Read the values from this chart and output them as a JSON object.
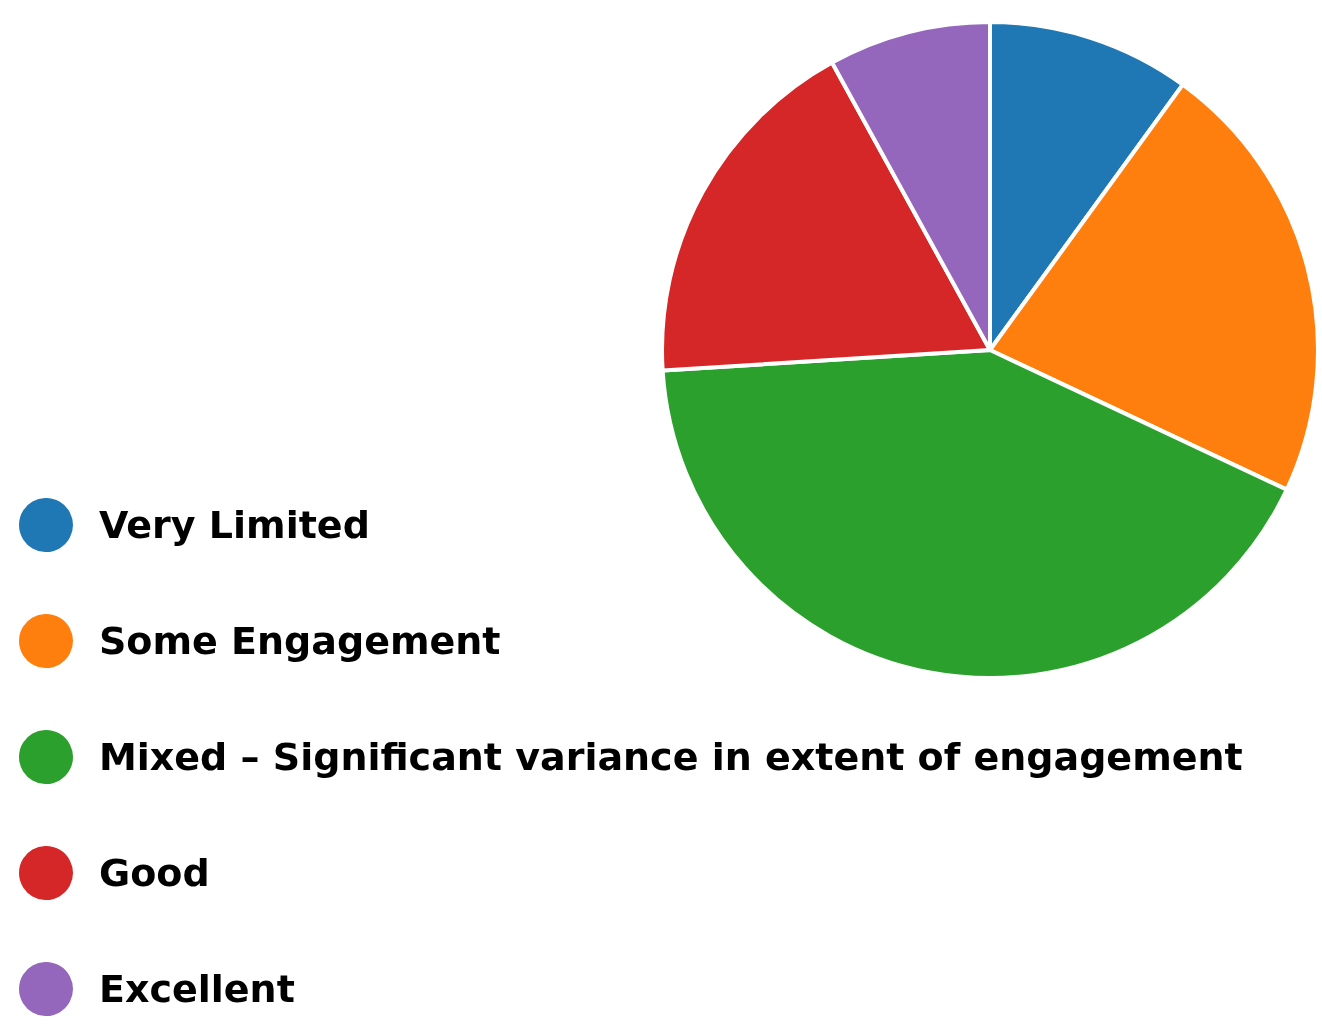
{
  "chart_data": {
    "type": "pie",
    "categories": [
      "Very Limited",
      "Some Engagement",
      "Mixed – Significant variance in extent of engagement",
      "Good",
      "Excellent"
    ],
    "values": [
      10,
      22,
      42,
      18,
      8
    ],
    "colors": [
      "#1f77b4",
      "#ff7f0e",
      "#2ca02c",
      "#d62728",
      "#9467bd"
    ],
    "legend": "bottom left"
  }
}
